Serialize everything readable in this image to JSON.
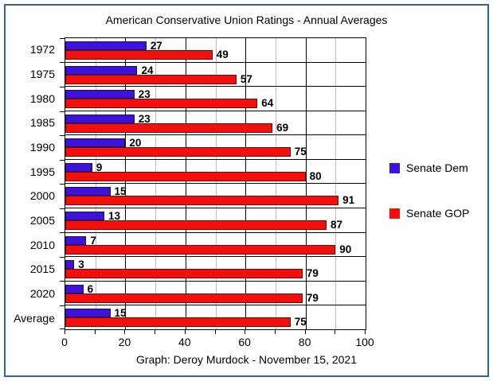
{
  "frame": {
    "border_color": "#2E6496"
  },
  "chart_data": {
    "type": "bar",
    "orientation": "horizontal",
    "title": "American Conservative Union Ratings - Annual Averages",
    "caption": "Graph: Deroy Murdock - November 15, 2021",
    "categories": [
      "1972",
      "1975",
      "1980",
      "1985",
      "1990",
      "1995",
      "2000",
      "2005",
      "2010",
      "2015",
      "2020",
      "Average"
    ],
    "series": [
      {
        "name": "Senate Dem",
        "color": "#3C12DC",
        "values": [
          27,
          24,
          23,
          23,
          20,
          9,
          15,
          13,
          7,
          3,
          6,
          15
        ]
      },
      {
        "name": "Senate GOP",
        "color": "#F3100C",
        "values": [
          49,
          57,
          64,
          69,
          75,
          80,
          91,
          87,
          90,
          79,
          79,
          75
        ]
      }
    ],
    "xlim": [
      0,
      100
    ],
    "x_ticks": [
      0,
      20,
      40,
      60,
      80,
      100
    ],
    "minor_tick_step": 10,
    "grid": {
      "minor_color": "#BDBDBD",
      "major_color": "#000000",
      "major_step": 20
    },
    "legend_position": "right"
  }
}
